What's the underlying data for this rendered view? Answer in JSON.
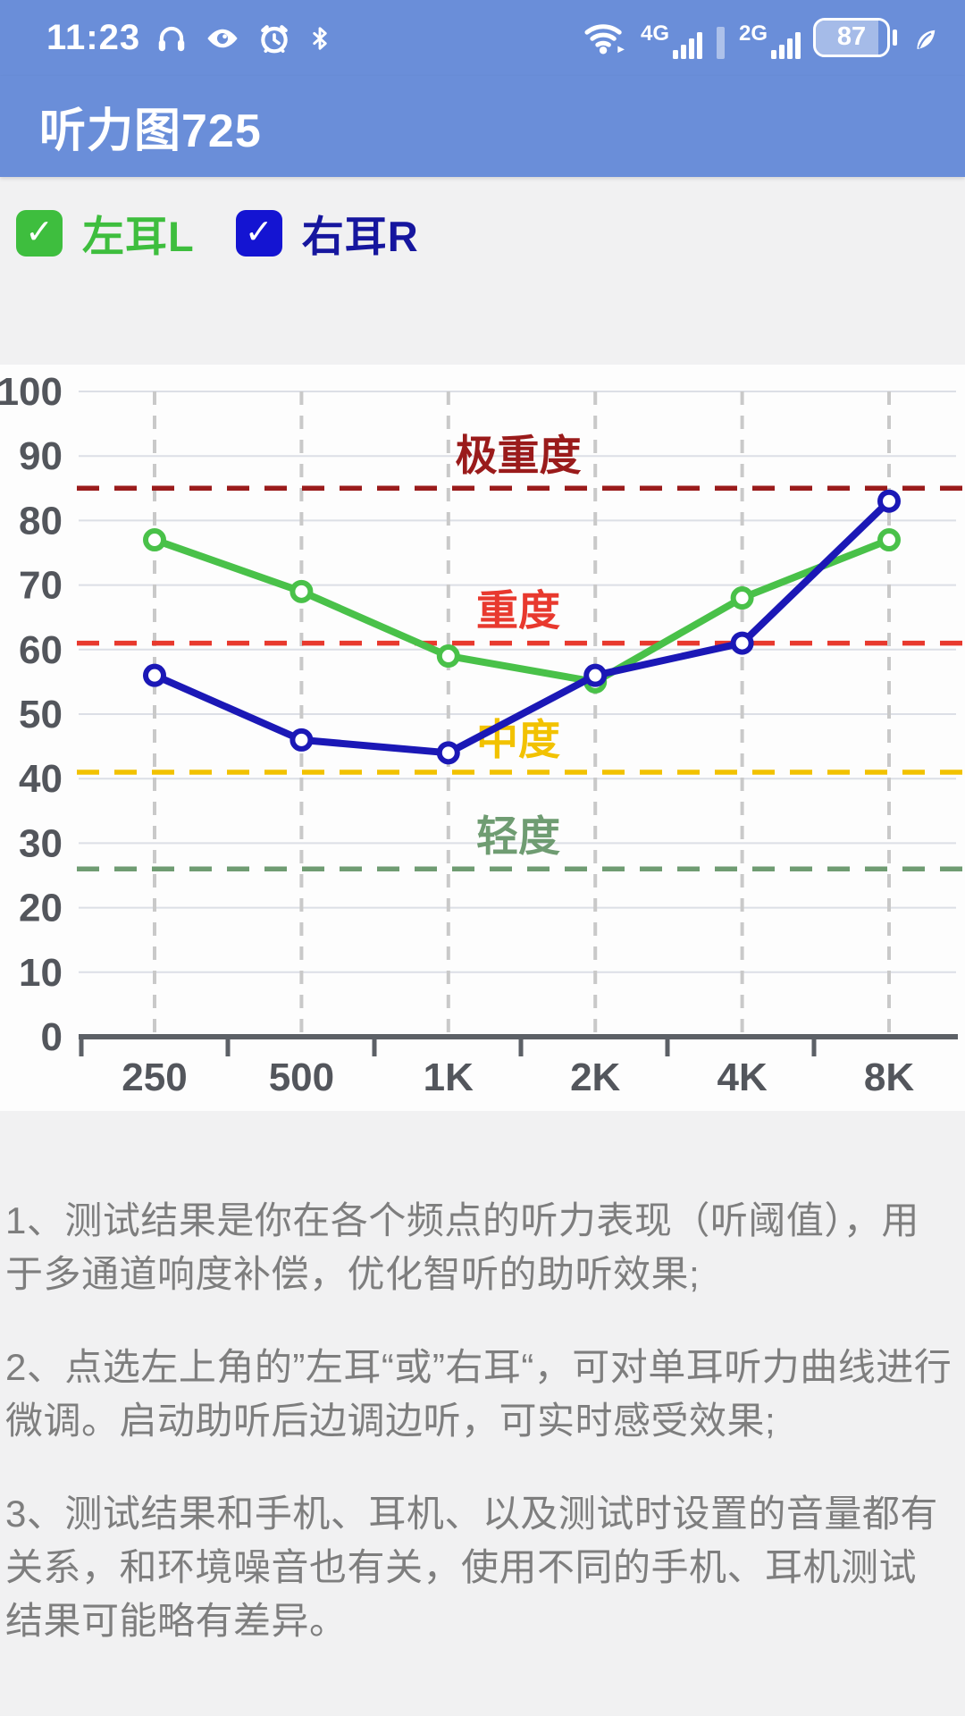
{
  "status_bar": {
    "time": "11:23",
    "left_icons": [
      "headset-icon",
      "eye-icon",
      "alarm-icon",
      "bluetooth-icon"
    ],
    "net1": "4G",
    "net2": "2G",
    "right_icons": [
      "wifi-icon",
      "signal-bars-4g",
      "signal-bars-2g",
      "battery-indicator",
      "leaf-icon"
    ],
    "battery": "87"
  },
  "header": {
    "title": "听力图725"
  },
  "legend": {
    "check_glyph": "✓",
    "items": [
      {
        "label": "左耳L",
        "checked": true,
        "box_color": "#3ebe3e",
        "label_color": "#3ebe3e"
      },
      {
        "label": "右耳R",
        "checked": true,
        "box_color": "#1414d2",
        "label_color": "#16169e"
      }
    ]
  },
  "chart_data": {
    "type": "line",
    "x_categories": [
      "250",
      "500",
      "1K",
      "2K",
      "4K",
      "8K"
    ],
    "y_ticks": [
      100,
      90,
      80,
      70,
      60,
      50,
      40,
      30,
      20,
      10,
      0
    ],
    "ylim": [
      0,
      100
    ],
    "grid": "on",
    "series": [
      {
        "name": "左耳L",
        "color": "#49c149",
        "values": [
          77,
          69,
          59,
          55,
          68,
          77
        ]
      },
      {
        "name": "右耳R",
        "color": "#1b18b6",
        "values": [
          56,
          46,
          44,
          56,
          61,
          83
        ]
      }
    ],
    "thresholds": [
      {
        "label": "极重度",
        "value": 85,
        "label_y": 90,
        "color": "#9a1b1b"
      },
      {
        "label": "重度",
        "value": 61,
        "label_y": 66,
        "color": "#e8392e"
      },
      {
        "label": "中度",
        "value": 41,
        "label_y": 46,
        "color": "#f2c200"
      },
      {
        "label": "轻度",
        "value": 26,
        "label_y": 31,
        "color": "#6f9c72"
      }
    ],
    "axis_text_color": "#53565c"
  },
  "notes": [
    "1、测试结果是你在各个频点的听力表现（听阈值），用于多通道响度补偿，优化智听的助听效果;",
    "2、点选左上角的”左耳“或”右耳“，可对单耳听力曲线进行微调。启动助听后边调边听，可实时感受效果;",
    "3、测试结果和手机、耳机、以及测试时设置的音量都有关系，和环境噪音也有关，使用不同的手机、耳机测试结果可能略有差异。"
  ]
}
